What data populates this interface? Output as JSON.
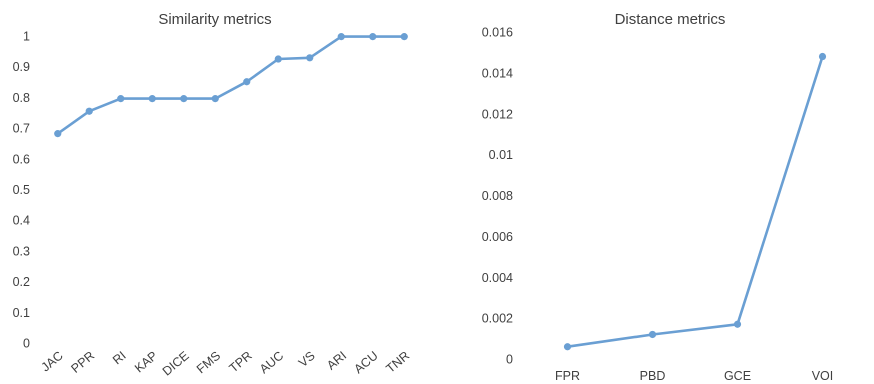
{
  "chart_data": [
    {
      "type": "line",
      "title": "Similarity metrics",
      "categories": [
        "JAC",
        "PPR",
        "RI",
        "KAP",
        "DICE",
        "FMS",
        "TPR",
        "AUC",
        "VS",
        "ARI",
        "ACU",
        "TNR"
      ],
      "values": [
        0.682,
        0.755,
        0.796,
        0.796,
        0.796,
        0.796,
        0.851,
        0.925,
        0.929,
        0.998,
        0.998,
        0.998
      ],
      "yticks": [
        "0",
        "0.1",
        "0.2",
        "0.3",
        "0.4",
        "0.5",
        "0.6",
        "0.7",
        "0.8",
        "0.9",
        "1"
      ],
      "ylim": [
        0,
        1
      ],
      "xlabel": "",
      "ylabel": "",
      "grid": false,
      "color": "#6a9fd3",
      "xtick_rotation": "rotated"
    },
    {
      "type": "line",
      "title": "Distance metrics",
      "categories": [
        "FPR",
        "PBD",
        "GCE",
        "VOI"
      ],
      "values": [
        0.0006,
        0.0012,
        0.0017,
        0.0148
      ],
      "yticks": [
        "0",
        "0.002",
        "0.004",
        "0.006",
        "0.008",
        "0.01",
        "0.012",
        "0.014",
        "0.016"
      ],
      "ylim": [
        0,
        0.016
      ],
      "xlabel": "",
      "ylabel": "",
      "grid": false,
      "color": "#6a9fd3"
    }
  ]
}
